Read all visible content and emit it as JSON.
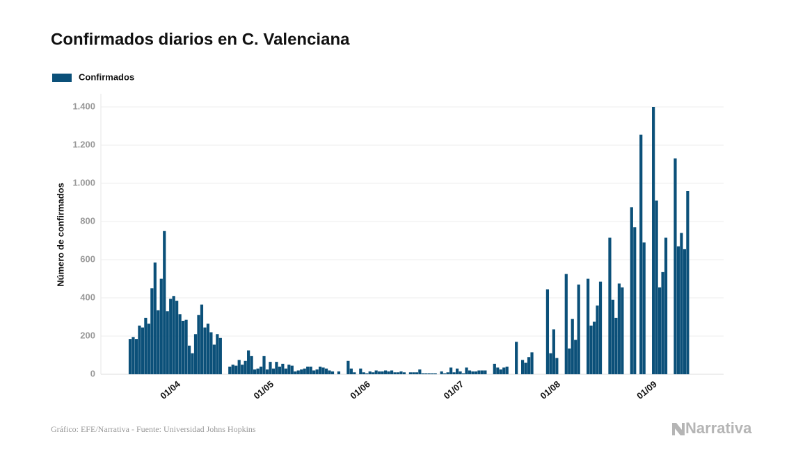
{
  "chart_data": {
    "type": "bar",
    "title": "Confirmados diarios en C. Valenciana",
    "y_label": "Número de confirmados",
    "source": "Gráfico: EFE/Narrativa - Fuente: Universidad Johns Hopkins",
    "logo": "Narrativa",
    "categories": [
      null,
      null,
      null,
      null,
      null,
      null,
      null,
      null,
      null,
      null,
      null,
      null,
      null,
      null,
      "01/04",
      null,
      null,
      null,
      null,
      null,
      null,
      null,
      null,
      null,
      null,
      null,
      null,
      null,
      null,
      null,
      null,
      null,
      null,
      null,
      null,
      null,
      null,
      null,
      null,
      null,
      null,
      null,
      null,
      null,
      "01/05",
      null,
      null,
      null,
      null,
      null,
      null,
      null,
      null,
      null,
      null,
      null,
      null,
      null,
      null,
      null,
      null,
      null,
      null,
      null,
      null,
      null,
      null,
      null,
      null,
      null,
      null,
      null,
      null,
      null,
      null,
      "01/06",
      null,
      null,
      null,
      null,
      null,
      null,
      null,
      null,
      null,
      null,
      null,
      null,
      null,
      null,
      null,
      null,
      null,
      null,
      null,
      null,
      null,
      null,
      null,
      null,
      null,
      null,
      null,
      null,
      null,
      "01/07",
      null,
      null,
      null,
      null,
      null,
      null,
      null,
      null,
      null,
      null,
      null,
      null,
      null,
      null,
      null,
      null,
      null,
      null,
      null,
      null,
      null,
      null,
      null,
      null,
      null,
      null,
      null,
      null,
      null,
      null,
      "01/08",
      null,
      null,
      null,
      null,
      null,
      null,
      null,
      null,
      null,
      null,
      null,
      null,
      null,
      null,
      null,
      null,
      null,
      null,
      null,
      null,
      null,
      null,
      null,
      null,
      null,
      null,
      null,
      null,
      null,
      null,
      "01/09",
      null,
      null,
      null,
      null,
      null,
      null,
      null,
      null,
      null,
      null,
      null,
      null
    ],
    "series": [
      {
        "name": "Confirmados",
        "color": "#0b5079",
        "values": [
          185,
          195,
          185,
          255,
          245,
          295,
          265,
          450,
          585,
          335,
          500,
          750,
          330,
          395,
          410,
          385,
          315,
          280,
          285,
          150,
          110,
          210,
          310,
          365,
          245,
          265,
          220,
          155,
          210,
          190,
          null,
          null,
          40,
          50,
          45,
          75,
          50,
          70,
          125,
          95,
          25,
          30,
          40,
          95,
          25,
          65,
          30,
          65,
          40,
          55,
          30,
          50,
          45,
          15,
          20,
          25,
          30,
          40,
          40,
          20,
          25,
          40,
          35,
          30,
          20,
          15,
          null,
          15,
          null,
          null,
          70,
          30,
          10,
          null,
          30,
          10,
          5,
          15,
          10,
          20,
          15,
          15,
          20,
          15,
          20,
          10,
          10,
          15,
          10,
          null,
          10,
          10,
          10,
          25,
          5,
          5,
          5,
          5,
          5,
          null,
          15,
          5,
          10,
          35,
          10,
          30,
          15,
          5,
          35,
          20,
          15,
          15,
          20,
          20,
          20,
          null,
          null,
          55,
          35,
          25,
          35,
          40,
          null,
          null,
          170,
          null,
          75,
          60,
          90,
          115,
          null,
          null,
          null,
          null,
          445,
          110,
          235,
          85,
          null,
          null,
          525,
          135,
          290,
          180,
          470,
          null,
          null,
          500,
          255,
          275,
          360,
          485,
          null,
          null,
          715,
          390,
          295,
          475,
          455,
          null,
          null,
          875,
          770,
          null,
          1255,
          690,
          null,
          null,
          1400,
          910,
          455,
          535,
          715,
          null,
          null,
          1130,
          670,
          740,
          655,
          960
        ]
      }
    ],
    "ylim": [
      0,
      1400
    ],
    "yticks": [
      0,
      200,
      400,
      600,
      800,
      {
        "value": 1000,
        "label": "1.000"
      },
      {
        "value": 1200,
        "label": "1.200"
      },
      {
        "value": 1400,
        "label": "1.400"
      }
    ],
    "grid": true
  }
}
